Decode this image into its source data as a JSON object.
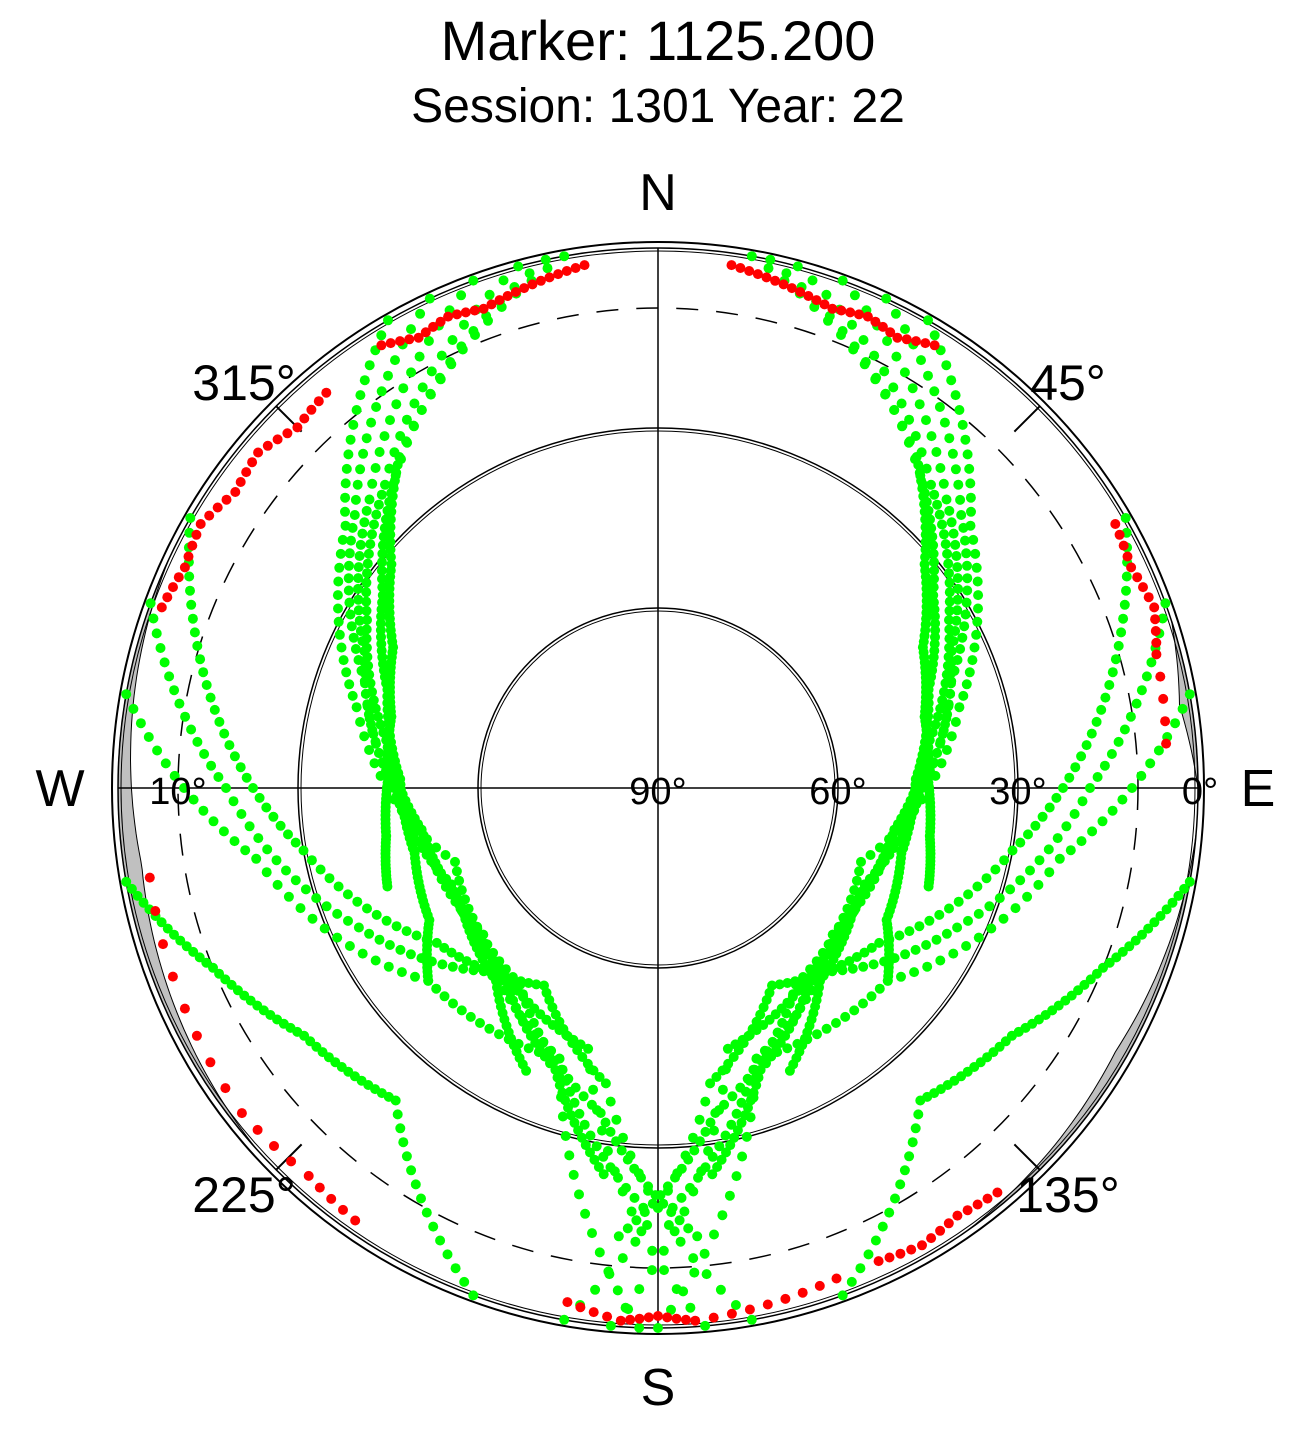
{
  "title": "Marker: 1125.200",
  "subtitle": "Session: 1301 Year: 22",
  "compass": {
    "north": "N",
    "south": "S",
    "east": "E",
    "west": "W"
  },
  "azimuth_labels": [
    "45°",
    "135°",
    "225°",
    "315°"
  ],
  "elevation_labels": [
    "10°",
    "90°",
    "60°",
    "30°",
    "0°"
  ],
  "colors": {
    "tracked": "#00ff00",
    "low_elevation": "#ff0000",
    "obstruction": "#c0c0c0",
    "grid": "#000000"
  },
  "chart_data": {
    "type": "scatter",
    "projection": "polar skyplot (azimuth clockwise from north, elevation 0° at rim to 90° at center)",
    "title": "Marker: 1125.200",
    "subtitle": "Session: 1301 Year: 22",
    "elevation_rings_deg": [
      0,
      30,
      60
    ],
    "elevation_dashed_ring_deg": 10,
    "azimuth_ticks_deg": [
      45,
      135,
      225,
      315
    ],
    "obstruction_mask": [
      {
        "az_start": 72,
        "az_end": 90,
        "max_elev": 2
      },
      {
        "az_start": 95,
        "az_end": 145,
        "max_elev": 2
      },
      {
        "az_start": 228,
        "az_end": 295,
        "max_elev": 3
      }
    ],
    "series": [
      {
        "color": "#00ff00",
        "tracks": [
          {
            "az": [
              10,
              38,
              50,
              62,
              75,
              88,
              100,
              110
            ],
            "el": [
              0,
              20,
              32,
              40,
              44,
              45,
              44,
              42
            ]
          },
          {
            "az": [
              12,
              40,
              55,
              70,
              88,
              105,
              120,
              130
            ],
            "el": [
              0,
              22,
              34,
              42,
              47,
              48,
              46,
              40
            ]
          },
          {
            "az": [
              15,
              42,
              60,
              80,
              100,
              120,
              140,
              155
            ],
            "el": [
              0,
              22,
              34,
              44,
              50,
              52,
              48,
              38
            ]
          },
          {
            "az": [
              20,
              45,
              65,
              90,
              115,
              140,
              160,
              172
            ],
            "el": [
              0,
              22,
              36,
              46,
              52,
              50,
              40,
              25
            ]
          },
          {
            "az": [
              25,
              48,
              70,
              100,
              130,
              160,
              178
            ],
            "el": [
              0,
              22,
              38,
              50,
              52,
              42,
              20
            ]
          },
          {
            "az": [
              30,
              50,
              75,
              110,
              145,
              170,
              185
            ],
            "el": [
              0,
              22,
              38,
              54,
              50,
              35,
              15
            ]
          },
          {
            "az": [
              350,
              322,
              310,
              298,
              285,
              272,
              260,
              250
            ],
            "el": [
              0,
              20,
              32,
              40,
              44,
              45,
              44,
              42
            ]
          },
          {
            "az": [
              348,
              320,
              305,
              290,
              272,
              255,
              240,
              230
            ],
            "el": [
              0,
              22,
              34,
              42,
              47,
              48,
              46,
              40
            ]
          },
          {
            "az": [
              345,
              318,
              300,
              280,
              260,
              240,
              220,
              205
            ],
            "el": [
              0,
              22,
              34,
              44,
              50,
              52,
              48,
              38
            ]
          },
          {
            "az": [
              340,
              315,
              295,
              270,
              245,
              220,
              200,
              188
            ],
            "el": [
              0,
              22,
              36,
              46,
              52,
              50,
              40,
              25
            ]
          },
          {
            "az": [
              335,
              312,
              290,
              260,
              230,
              200,
              182
            ],
            "el": [
              0,
              22,
              38,
              50,
              52,
              42,
              20
            ]
          },
          {
            "az": [
              330,
              310,
              285,
              250,
              215,
              190,
              175
            ],
            "el": [
              0,
              22,
              38,
              54,
              50,
              35,
              15
            ]
          },
          {
            "az": [
              60,
              80,
              100,
              125,
              150,
              170,
              190
            ],
            "el": [
              0,
              15,
              30,
              45,
              52,
              40,
              0
            ]
          },
          {
            "az": [
              70,
              90,
              115,
              140,
              165,
              185
            ],
            "el": [
              0,
              18,
              35,
              50,
              45,
              0
            ]
          },
          {
            "az": [
              80,
              100,
              130,
              160,
              180
            ],
            "el": [
              0,
              22,
              40,
              42,
              0
            ]
          },
          {
            "az": [
              300,
              280,
              260,
              235,
              210,
              190,
              170
            ],
            "el": [
              0,
              15,
              30,
              45,
              52,
              40,
              0
            ]
          },
          {
            "az": [
              290,
              270,
              245,
              220,
              195,
              175
            ],
            "el": [
              0,
              18,
              35,
              50,
              45,
              0
            ]
          },
          {
            "az": [
              280,
              260,
              230,
              200,
              182
            ],
            "el": [
              0,
              22,
              40,
              42,
              0
            ]
          },
          {
            "az": [
              100,
              112,
              125,
              140,
              160
            ],
            "el": [
              0,
              10,
              18,
              22,
              0
            ]
          },
          {
            "az": [
              260,
              248,
              235,
              220,
              200
            ],
            "el": [
              0,
              10,
              18,
              22,
              0
            ]
          }
        ]
      },
      {
        "color": "#ff0000",
        "tracks": [
          {
            "az": [
              8,
              12,
              16,
              20,
              24,
              28,
              32
            ],
            "el": [
              2,
              3,
              4,
              5,
              4,
              5,
              3
            ]
          },
          {
            "az": [
              352,
              348,
              344,
              340,
              336,
              332,
              328
            ],
            "el": [
              2,
              3,
              4,
              5,
              4,
              5,
              3
            ]
          },
          {
            "az": [
              290,
              295,
              300,
              305,
              310,
              315,
              320
            ],
            "el": [
              2,
              3,
              2,
              4,
              3,
              5,
              4
            ]
          },
          {
            "az": [
              60,
              65,
              70,
              75,
              85
            ],
            "el": [
              2,
              3,
              2,
              4,
              5
            ]
          },
          {
            "az": [
              160,
              168,
              176,
              180,
              184,
              190
            ],
            "el": [
              3,
              2,
              1,
              2,
              1,
              3
            ]
          },
          {
            "az": [
              215,
              222,
              232,
              245,
              260
            ],
            "el": [
              2,
              3,
              2,
              3,
              4
            ]
          },
          {
            "az": [
              140,
              145,
              150,
              155
            ],
            "el": [
              2,
              3,
              2,
              3
            ]
          }
        ]
      }
    ]
  }
}
